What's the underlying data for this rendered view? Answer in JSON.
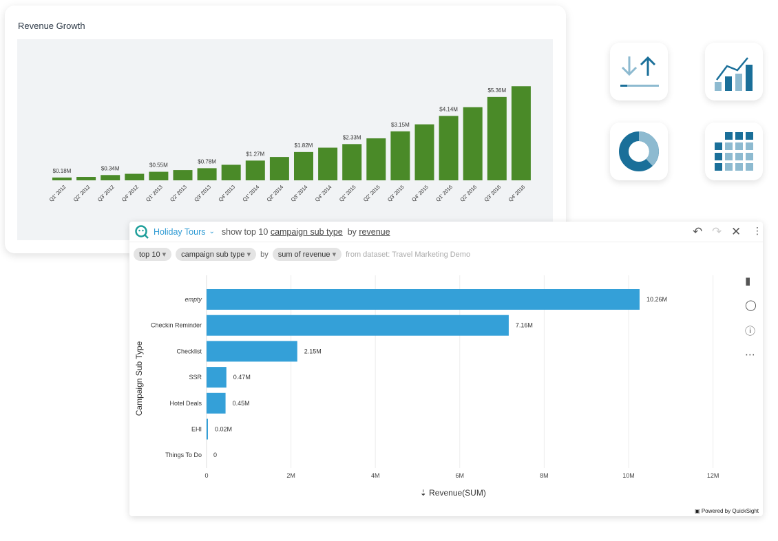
{
  "top_card": {
    "title": "Revenue Growth"
  },
  "chart_data": [
    {
      "type": "bar",
      "title": "Revenue Growth",
      "categories": [
        "Q1' 2012",
        "Q2' 2012",
        "Q3' 2012",
        "Q4' 2012",
        "Q1' 2013",
        "Q2' 2013",
        "Q3' 2013",
        "Q4' 2013",
        "Q1' 2014",
        "Q2' 2014",
        "Q3' 2014",
        "Q4' 2014",
        "Q1' 2015",
        "Q2' 2015",
        "Q3' 2015",
        "Q4' 2015",
        "Q1' 2016",
        "Q2' 2016",
        "Q3' 2016",
        "Q4' 2016"
      ],
      "values": [
        0.18,
        0.22,
        0.34,
        0.42,
        0.55,
        0.66,
        0.78,
        1.0,
        1.27,
        1.5,
        1.82,
        2.1,
        2.33,
        2.7,
        3.15,
        3.6,
        4.14,
        4.7,
        5.36,
        6.05
      ],
      "data_labels": [
        "$0.18M",
        "",
        "$0.34M",
        "",
        "$0.55M",
        "",
        "$0.78M",
        "",
        "$1.27M",
        "",
        "$1.82M",
        "",
        "$2.33M",
        "",
        "$3.15M",
        "",
        "$4.14M",
        "",
        "$5.36M",
        ""
      ],
      "unit": "$M",
      "color": "#4a8a28",
      "grid": false
    },
    {
      "type": "bar",
      "orientation": "horizontal",
      "categories": [
        "empty",
        "Checkin Reminder",
        "Checklist",
        "SSR",
        "Hotel Deals",
        "EHI",
        "Things To Do"
      ],
      "values": [
        10.26,
        7.16,
        2.15,
        0.47,
        0.45,
        0.02,
        0
      ],
      "data_labels": [
        "10.26M",
        "7.16M",
        "2.15M",
        "0.47M",
        "0.45M",
        "0.02M",
        "0"
      ],
      "xlabel": "Revenue(SUM)",
      "ylabel": "Campaign Sub Type",
      "xticks": [
        "0",
        "2M",
        "4M",
        "6M",
        "8M",
        "10M",
        "12M"
      ],
      "xlim": [
        0,
        12
      ],
      "color": "#34a0d8",
      "grid": true
    }
  ],
  "tiles": [
    "upload-download-icon",
    "bar-line-chart-icon",
    "donut-chart-icon",
    "heatmap-grid-icon"
  ],
  "qs": {
    "topic": "Holiday Tours",
    "q_show": "show top 10",
    "q_field": "campaign sub type",
    "q_by": "by",
    "q_measure": "revenue",
    "chips": {
      "top": "top 10",
      "field": "campaign sub type",
      "by": "by",
      "measure": "sum of revenue",
      "dataset": "from dataset: Travel Marketing Demo"
    },
    "footer": "Powered by QuickSight"
  }
}
